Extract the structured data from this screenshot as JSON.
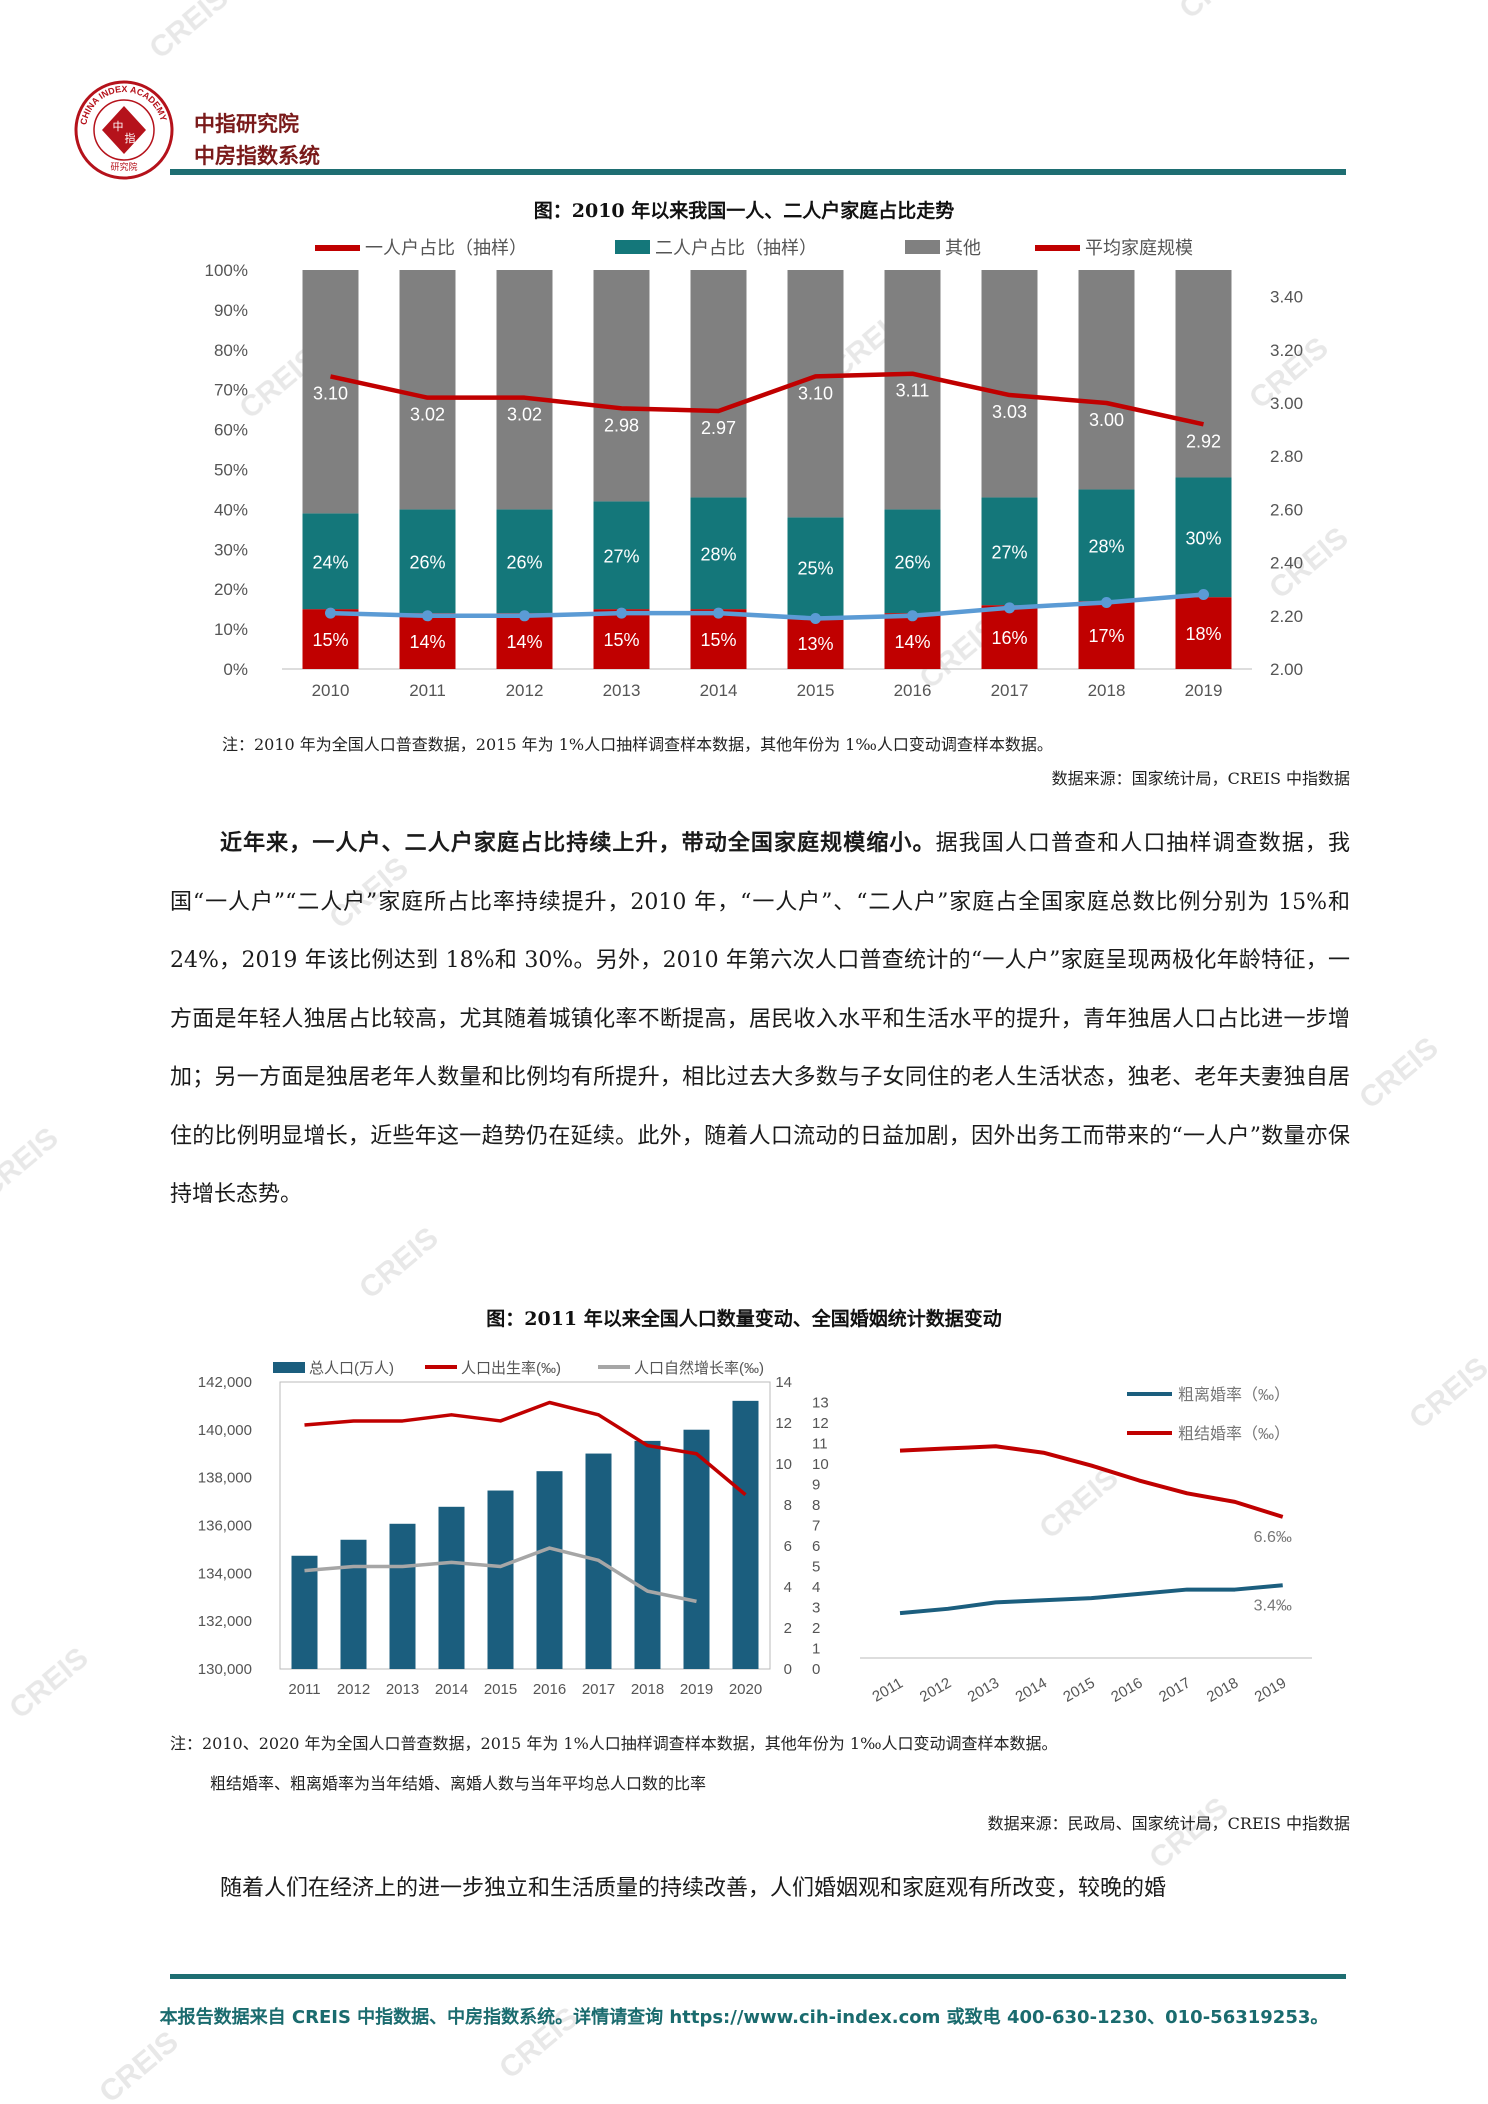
{
  "header": {
    "logo_ring_text": "CHINA INDEX ACADEMY",
    "logo_center": [
      "中",
      "指"
    ],
    "logo_bottom": "研究院",
    "org_line1": "中指研究院",
    "org_line2": "中房指数系统",
    "brand_color": "#1e6e72",
    "logo_color": "#b5121b"
  },
  "watermark": "CREIS",
  "figure1": {
    "title": "图：2010 年以来我国一人、二人户家庭占比走势",
    "note": "注：2010 年为全国人口普查数据，2015 年为 1%人口抽样调查样本数据，其他年份为 1‰人口变动调查样本数据。",
    "source": "数据来源：国家统计局，CREIS 中指数据"
  },
  "paragraph1": {
    "lead": "近年来，一人户、二人户家庭占比持续上升，带动全国家庭规模缩小。",
    "rest": "据我国人口普查和人口抽样调查数据，我国“一人户”“二人户”家庭所占比率持续提升，2010 年，“一人户”、“二人户”家庭占全国家庭总数比例分别为 15%和 24%，2019 年该比例达到 18%和 30%。另外，2010 年第六次人口普查统计的“一人户”家庭呈现两极化年龄特征，一方面是年轻人独居占比较高，尤其随着城镇化率不断提高，居民收入水平和生活水平的提升，青年独居人口占比进一步增加；另一方面是独居老年人数量和比例均有所提升，相比过去大多数与子女同住的老人生活状态，独老、老年夫妻独自居住的比例明显增长，近些年这一趋势仍在延续。此外，随着人口流动的日益加剧，因外出务工而带来的“一人户”数量亦保持增长态势。"
  },
  "figure2": {
    "title": "图：2011 年以来全国人口数量变动、全国婚姻统计数据变动",
    "note1": "注：2010、2020 年为全国人口普查数据，2015 年为 1%人口抽样调查样本数据，其他年份为 1‰人口变动调查样本数据。",
    "note2": "粗结婚率、粗离婚率为当年结婚、离婚人数与当年平均总人口数的比率",
    "source": "数据来源：民政局、国家统计局，CREIS 中指数据"
  },
  "paragraph2": {
    "text": "随着人们在经济上的进一步独立和生活质量的持续改善，人们婚姻观和家庭观有所改变，较晚的婚"
  },
  "footer": {
    "text": "本报告数据来自 CREIS 中指数据、中房指数系统。详情请查询 https://www.cih-index.com 或致电 400-630-1230、010-56319253。"
  },
  "chart_data": [
    {
      "type": "bar",
      "stacked": true,
      "categories": [
        "2010",
        "2011",
        "2012",
        "2013",
        "2014",
        "2015",
        "2016",
        "2017",
        "2018",
        "2019"
      ],
      "series": [
        {
          "name": "一人户占比（抽样）",
          "values": [
            15,
            14,
            14,
            15,
            15,
            13,
            14,
            16,
            17,
            18
          ],
          "value_labels": [
            "15%",
            "14%",
            "14%",
            "15%",
            "15%",
            "13%",
            "14%",
            "16%",
            "17%",
            "18%"
          ],
          "color": "#c00000"
        },
        {
          "name": "二人户占比（抽样）",
          "values": [
            24,
            26,
            26,
            27,
            28,
            25,
            26,
            27,
            28,
            30
          ],
          "value_labels": [
            "24%",
            "26%",
            "26%",
            "27%",
            "28%",
            "25%",
            "26%",
            "27%",
            "28%",
            "30%"
          ],
          "color": "#14777a"
        },
        {
          "name": "其他",
          "values": [
            61,
            60,
            60,
            58,
            57,
            62,
            60,
            57,
            55,
            52
          ],
          "color": "#808080"
        }
      ],
      "line_series": [
        {
          "name": "平均家庭规模",
          "axis": "right",
          "values": [
            3.1,
            3.02,
            3.02,
            2.98,
            2.97,
            3.1,
            3.11,
            3.03,
            3.0,
            2.92
          ],
          "value_labels": [
            "3.10",
            "3.02",
            "3.02",
            "2.98",
            "2.97",
            "3.10",
            "3.11",
            "3.03",
            "3.00",
            "2.92"
          ],
          "color": "#c00000"
        },
        {
          "axis": "right",
          "values": [
            2.21,
            2.2,
            2.2,
            2.21,
            2.21,
            2.19,
            2.2,
            2.23,
            2.25,
            2.28
          ],
          "color": "#5b9bd5"
        }
      ],
      "ylim_left": [
        0,
        100
      ],
      "yticks_left": [
        "0%",
        "10%",
        "20%",
        "30%",
        "40%",
        "50%",
        "60%",
        "70%",
        "80%",
        "90%",
        "100%"
      ],
      "ylim_right": [
        2.0,
        3.5
      ],
      "yticks_right": [
        "2.00",
        "2.20",
        "2.40",
        "2.60",
        "2.80",
        "3.00",
        "3.20",
        "3.40"
      ],
      "legend": "top"
    },
    {
      "type": "bar",
      "categories": [
        "2011",
        "2012",
        "2013",
        "2014",
        "2015",
        "2016",
        "2017",
        "2018",
        "2019",
        "2020"
      ],
      "series": [
        {
          "name": "总人口(万人)",
          "axis": "left",
          "values": [
            134735,
            135404,
            136072,
            136782,
            137462,
            138271,
            139008,
            139538,
            140005,
            141212
          ],
          "color": "#1b5e7e"
        }
      ],
      "line_series": [
        {
          "name": "人口出生率(‰)",
          "axis": "right",
          "values": [
            11.9,
            12.1,
            12.1,
            12.4,
            12.1,
            13.0,
            12.4,
            10.9,
            10.5,
            8.5
          ],
          "color": "#c00000"
        },
        {
          "name": "人口自然增长率(‰)",
          "axis": "right",
          "values": [
            4.8,
            5.0,
            5.0,
            5.2,
            5.0,
            5.9,
            5.3,
            3.8,
            3.3,
            null
          ],
          "color": "#a6a6a6"
        }
      ],
      "ylim_left": [
        130000,
        142000
      ],
      "yticks_left": [
        "130,000",
        "132,000",
        "134,000",
        "136,000",
        "138,000",
        "140,000",
        "142,000"
      ],
      "ylim_right": [
        0,
        14
      ],
      "yticks_right_a": [
        "0",
        "2",
        "4",
        "6",
        "8",
        "10",
        "12",
        "14"
      ],
      "yticks_right_b": [
        "0",
        "1",
        "2",
        "3",
        "4",
        "5",
        "6",
        "7",
        "8",
        "9",
        "10",
        "11",
        "12",
        "13"
      ],
      "legend": "top"
    },
    {
      "type": "line",
      "categories": [
        "2011",
        "2012",
        "2013",
        "2014",
        "2015",
        "2016",
        "2017",
        "2018",
        "2019"
      ],
      "series": [
        {
          "name": "粗离婚率（‰）",
          "values": [
            2.1,
            2.3,
            2.6,
            2.7,
            2.8,
            3.0,
            3.2,
            3.2,
            3.4
          ],
          "color": "#1b5e7e",
          "end_label": "3.4‰"
        },
        {
          "name": "粗结婚率（‰）",
          "values": [
            9.7,
            9.8,
            9.9,
            9.6,
            9.0,
            8.3,
            7.7,
            7.3,
            6.6
          ],
          "color": "#c00000",
          "end_label": "6.6‰"
        }
      ],
      "ylim": [
        0,
        13
      ],
      "legend": "top-right"
    }
  ]
}
